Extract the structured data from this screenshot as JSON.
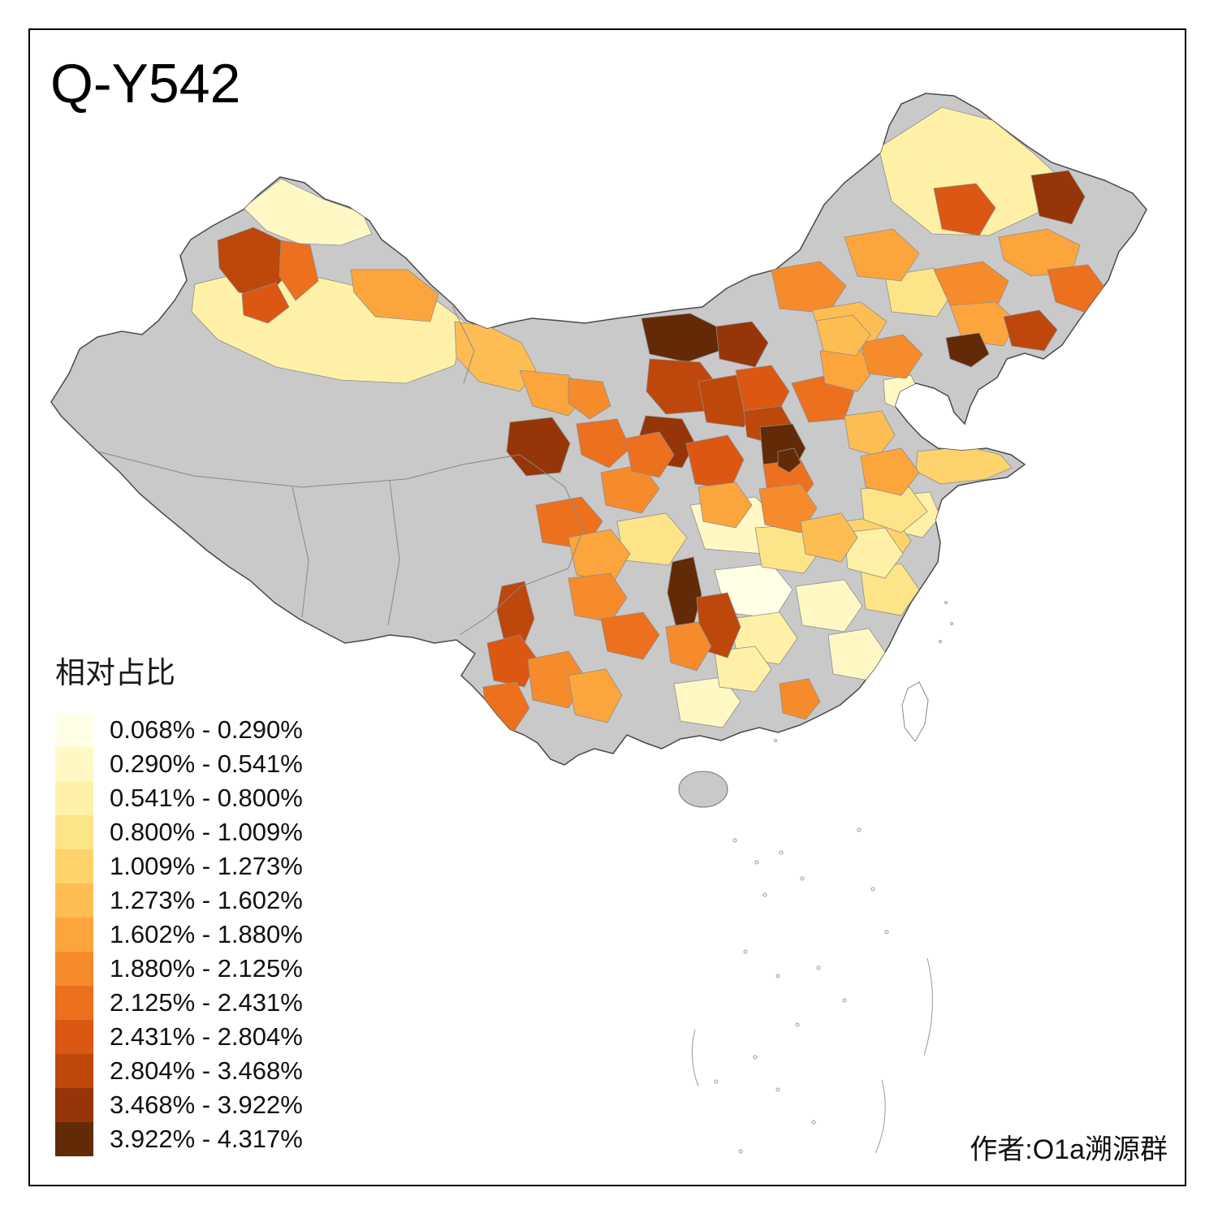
{
  "title": "Q-Y542",
  "legend": {
    "title": "相对占比",
    "classes": [
      {
        "label": "0.068% - 0.290%",
        "color": "#FFFFE5"
      },
      {
        "label": "0.290% - 0.541%",
        "color": "#FFF8C5"
      },
      {
        "label": "0.541% - 0.800%",
        "color": "#FEF1A7"
      },
      {
        "label": "0.800% - 1.009%",
        "color": "#FEE488"
      },
      {
        "label": "1.009% - 1.273%",
        "color": "#FED36B"
      },
      {
        "label": "1.273% - 1.602%",
        "color": "#FEBD52"
      },
      {
        "label": "1.602% - 1.880%",
        "color": "#FDA53D"
      },
      {
        "label": "1.880% - 2.125%",
        "color": "#F68B2C"
      },
      {
        "label": "2.125% - 2.431%",
        "color": "#EC701E"
      },
      {
        "label": "2.431% - 2.804%",
        "color": "#DB5712"
      },
      {
        "label": "2.804% - 3.468%",
        "color": "#BE470B"
      },
      {
        "label": "3.468% - 3.922%",
        "color": "#963608"
      },
      {
        "label": "3.922% - 4.317%",
        "color": "#632A07"
      }
    ]
  },
  "author": "作者:O1a溯源群",
  "map": {
    "name": "china-prefecture-choropleth",
    "no_data_color": "#C9C9C9",
    "outline_color": "#4A4A4A",
    "region_classes": {
      "r01": 2,
      "r02": 1,
      "r03": 2,
      "r04": 1,
      "r05": 0,
      "r06": 2,
      "r07": 1,
      "r08": 1,
      "r09": 1,
      "r10": 2,
      "r11": 2,
      "r12": 4,
      "r13": 3,
      "r14": 4,
      "r15": 3,
      "r16": 2,
      "r17": 1,
      "r18": 3,
      "r19": 3,
      "r20": 3,
      "r21": 10,
      "r22": 8,
      "r23": 9,
      "r24": 6,
      "r25": 5,
      "r26": 6,
      "r27": 7,
      "r28": 8,
      "r29": 11,
      "r30": 7,
      "r31": 12,
      "r32": 11,
      "r33": 10,
      "r34": 10,
      "r35": 11,
      "r36": 9,
      "r37": 9,
      "r38": 10,
      "r39": 12,
      "r40": 8,
      "r41": 8,
      "r42": 6,
      "r43": 5,
      "r44": 6,
      "r45": 7,
      "r46": 5,
      "r47": 6,
      "r48": 7,
      "r49": 5,
      "r50": 7,
      "r51": 9,
      "r52": 11,
      "r53": 6,
      "r54": 8,
      "r55": 7,
      "r56": 6,
      "r57": 10,
      "r58": 12,
      "r59": 8,
      "r60": 6,
      "r61": 7,
      "r62": 8,
      "r63": 10,
      "r64": 12,
      "r65": 10,
      "r66": 7,
      "r67": 9,
      "r68": 8,
      "r69": 7,
      "r70": 6,
      "r71": 7,
      "r72": 12,
      "r73": 8,
      "r74": 6,
      "r75": 5
    }
  }
}
